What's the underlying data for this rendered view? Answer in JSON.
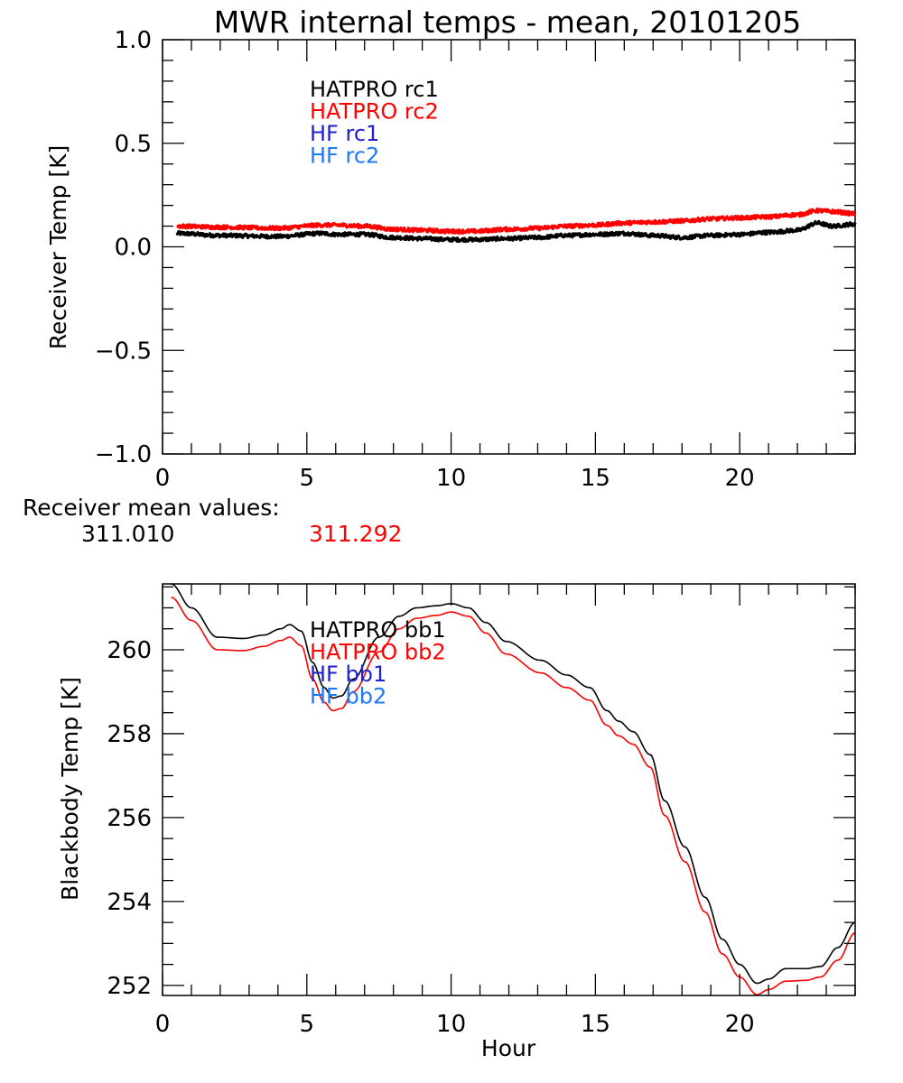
{
  "colors": {
    "black": "#000000",
    "red": "#ff0000",
    "blue": "#2020d0",
    "lightblue": "#1e78ff"
  },
  "chart_data": [
    {
      "type": "line",
      "title": "MWR internal temps - mean, 20101205",
      "xlabel": "",
      "ylabel": "Receiver Temp [K]",
      "xlim": [
        0,
        24
      ],
      "ylim": [
        -1.0,
        1.0
      ],
      "xticks": [
        0,
        5,
        10,
        15,
        20
      ],
      "xtick_labels": [
        "0",
        "5",
        "10",
        "15",
        "20"
      ],
      "yticks": [
        -1.0,
        -0.5,
        0.0,
        0.5,
        1.0
      ],
      "ytick_labels": [
        "−1.0",
        "−0.5",
        "0.0",
        "0.5",
        "1.0"
      ],
      "grid": false,
      "legend_placement": "top-left-center",
      "legend": [
        {
          "label": "HATPRO rc1",
          "color": "#000000"
        },
        {
          "label": "HATPRO rc2",
          "color": "#ff0000"
        },
        {
          "label": "HF rc1",
          "color": "#2020d0"
        },
        {
          "label": "HF rc2",
          "color": "#1e78ff"
        }
      ],
      "series": [
        {
          "name": "HATPRO rc1",
          "color": "#000000",
          "noisy": true,
          "x": [
            0.5,
            2,
            4,
            5.5,
            6,
            7,
            8,
            9,
            10,
            10.8,
            12,
            13,
            14,
            15,
            16,
            17,
            18,
            19,
            20,
            21,
            22,
            22.7,
            23.2,
            24
          ],
          "y": [
            0.065,
            0.055,
            0.05,
            0.065,
            0.06,
            0.06,
            0.045,
            0.04,
            0.035,
            0.035,
            0.04,
            0.045,
            0.055,
            0.06,
            0.065,
            0.055,
            0.045,
            0.055,
            0.06,
            0.07,
            0.08,
            0.115,
            0.1,
            0.11
          ]
        },
        {
          "name": "HATPRO rc2",
          "color": "#ff0000",
          "noisy": true,
          "x": [
            0.5,
            2,
            4,
            5.5,
            6,
            7,
            8,
            9,
            10,
            10.8,
            12,
            13,
            14,
            15,
            16,
            17,
            18,
            19,
            20,
            21,
            22,
            22.7,
            23.2,
            24
          ],
          "y": [
            0.1,
            0.095,
            0.09,
            0.105,
            0.105,
            0.1,
            0.085,
            0.08,
            0.075,
            0.075,
            0.085,
            0.09,
            0.1,
            0.105,
            0.115,
            0.12,
            0.125,
            0.135,
            0.14,
            0.145,
            0.155,
            0.175,
            0.17,
            0.16
          ]
        }
      ],
      "annotations": [
        {
          "label": "Receiver mean values:",
          "color": "#000000"
        },
        {
          "label": "311.010",
          "color": "#000000"
        },
        {
          "label": "311.292",
          "color": "#ff0000"
        }
      ]
    },
    {
      "type": "line",
      "title": "",
      "xlabel": "Hour",
      "ylabel": "Blackbody Temp [K]",
      "xlim": [
        0,
        24
      ],
      "ylim": [
        251.76,
        261.57
      ],
      "xticks": [
        0,
        5,
        10,
        15,
        20
      ],
      "xtick_labels": [
        "0",
        "5",
        "10",
        "15",
        "20"
      ],
      "yticks": [
        252,
        254,
        256,
        258,
        260
      ],
      "ytick_labels": [
        "252",
        "254",
        "256",
        "258",
        "260"
      ],
      "grid": false,
      "legend_placement": "top-left-center",
      "legend": [
        {
          "label": "HATPRO bb1",
          "color": "#000000"
        },
        {
          "label": "HATPRO bb2",
          "color": "#ff0000"
        },
        {
          "label": "HF bb1",
          "color": "#2020d0"
        },
        {
          "label": "HF bb2",
          "color": "#1e78ff"
        }
      ],
      "series": [
        {
          "name": "HATPRO bb1",
          "color": "#000000",
          "noisy": false,
          "x": [
            0.3,
            1.0,
            1.9,
            2.8,
            3.5,
            4.1,
            4.4,
            4.8,
            5.2,
            5.6,
            5.9,
            6.2,
            6.6,
            7.5,
            8.2,
            8.8,
            9.5,
            10.0,
            10.6,
            11.2,
            11.9,
            13.1,
            14.0,
            14.8,
            15.4,
            15.8,
            16.3,
            16.9,
            17.4,
            18.1,
            18.8,
            19.4,
            20.0,
            20.6,
            21.0,
            21.6,
            22.3,
            22.8,
            23.4,
            24.0
          ],
          "y": [
            261.57,
            261.0,
            260.3,
            260.27,
            260.35,
            260.5,
            260.6,
            260.45,
            259.7,
            259.1,
            258.85,
            258.9,
            259.3,
            260.3,
            260.8,
            261.0,
            261.05,
            261.1,
            261.0,
            260.65,
            260.2,
            259.75,
            259.4,
            259.1,
            258.55,
            258.3,
            258.05,
            257.5,
            256.4,
            255.3,
            254.1,
            253.1,
            252.5,
            252.05,
            252.15,
            252.4,
            252.4,
            252.45,
            252.9,
            253.5
          ]
        },
        {
          "name": "HATPRO bb2",
          "color": "#ff0000",
          "noisy": false,
          "x": [
            0.3,
            1.0,
            1.9,
            2.8,
            3.5,
            4.1,
            4.4,
            4.8,
            5.2,
            5.6,
            5.9,
            6.2,
            6.6,
            7.5,
            8.2,
            8.8,
            9.5,
            10.0,
            10.6,
            11.2,
            11.9,
            13.1,
            14.0,
            14.8,
            15.4,
            15.8,
            16.3,
            16.9,
            17.4,
            18.1,
            18.8,
            19.4,
            20.0,
            20.6,
            21.0,
            21.6,
            22.3,
            22.8,
            23.4,
            24.0
          ],
          "y": [
            261.25,
            260.7,
            260.0,
            259.98,
            260.08,
            260.22,
            260.3,
            260.1,
            259.3,
            258.75,
            258.55,
            258.6,
            259.0,
            259.95,
            260.5,
            260.75,
            260.82,
            260.9,
            260.8,
            260.4,
            259.9,
            259.45,
            259.1,
            258.8,
            258.2,
            257.95,
            257.75,
            257.2,
            256.05,
            254.95,
            253.75,
            252.75,
            252.2,
            251.78,
            251.9,
            252.1,
            252.12,
            252.2,
            252.6,
            253.25
          ]
        }
      ]
    }
  ]
}
